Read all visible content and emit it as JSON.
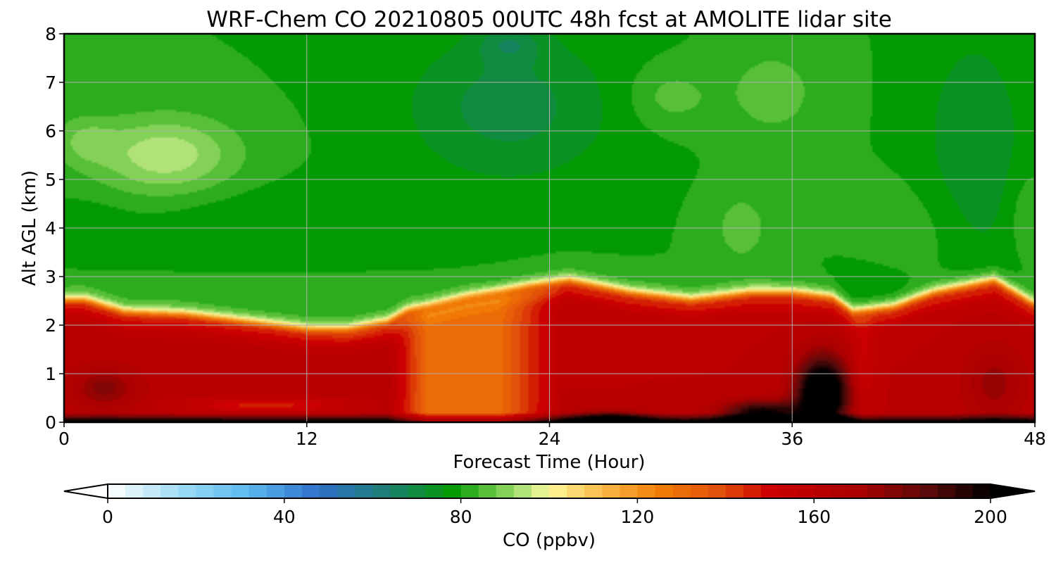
{
  "chart_data": {
    "type": "heatmap",
    "title": "WRF-Chem CO  20210805 00UTC 48h fcst at AMOLITE lidar site",
    "xlabel": "Forecast Time (Hour)",
    "ylabel": "Alt AGL (km)",
    "xlim": [
      0,
      48
    ],
    "ylim": [
      0,
      8
    ],
    "x_ticks": [
      "0",
      "12",
      "24",
      "36",
      "48"
    ],
    "y_ticks": [
      "0",
      "1",
      "2",
      "3",
      "4",
      "5",
      "6",
      "7",
      "8"
    ],
    "grid": true,
    "colorbar": {
      "label": "CO  (ppbv)",
      "range": [
        0,
        200
      ],
      "ticks": [
        "0",
        "40",
        "80",
        "120",
        "160",
        "200"
      ],
      "extend": "both",
      "stops": [
        {
          "v": 0,
          "color": "#ffffff"
        },
        {
          "v": 16,
          "color": "#9fdcf5"
        },
        {
          "v": 32,
          "color": "#5ab8ee"
        },
        {
          "v": 48,
          "color": "#2f6fc8"
        },
        {
          "v": 64,
          "color": "#1c7f6e"
        },
        {
          "v": 78,
          "color": "#039a06"
        },
        {
          "v": 88,
          "color": "#6cc844"
        },
        {
          "v": 96,
          "color": "#c6ea8a"
        },
        {
          "v": 100,
          "color": "#fff89a"
        },
        {
          "v": 112,
          "color": "#f9b848"
        },
        {
          "v": 126,
          "color": "#f07a04"
        },
        {
          "v": 140,
          "color": "#e04a0a"
        },
        {
          "v": 150,
          "color": "#cc0000"
        },
        {
          "v": 170,
          "color": "#aa0000"
        },
        {
          "v": 186,
          "color": "#5a0a0a"
        },
        {
          "v": 200,
          "color": "#000000"
        }
      ]
    }
  }
}
